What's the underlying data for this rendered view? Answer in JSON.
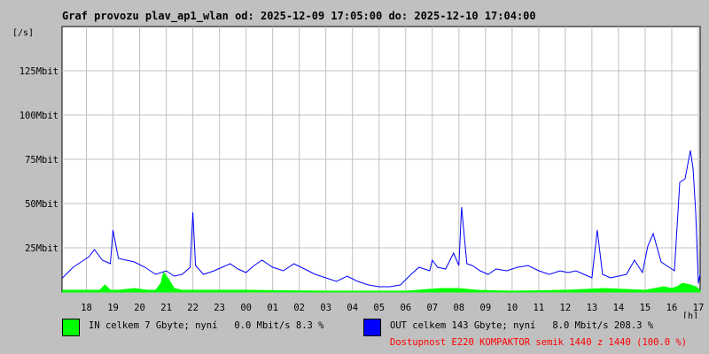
{
  "chart_data": {
    "type": "line",
    "title": "Graf provozu plav_ap1_wlan od: 2025-12-09 17:05:00 do: 2025-12-10 17:04:00",
    "ylabel": "[/s]",
    "xlabel": "[h]",
    "ylim": [
      0,
      150
    ],
    "y_ticks": [
      {
        "value": 25,
        "label": "25Mbit"
      },
      {
        "value": 50,
        "label": "50Mbit"
      },
      {
        "value": 75,
        "label": "75Mbit"
      },
      {
        "value": 100,
        "label": "100Mbit"
      },
      {
        "value": 125,
        "label": "125Mbit"
      }
    ],
    "xlim": [
      17.083,
      41.067
    ],
    "x_ticks": [
      {
        "value": 18,
        "label": "18"
      },
      {
        "value": 19,
        "label": "19"
      },
      {
        "value": 20,
        "label": "20"
      },
      {
        "value": 21,
        "label": "21"
      },
      {
        "value": 22,
        "label": "22"
      },
      {
        "value": 23,
        "label": "23"
      },
      {
        "value": 24,
        "label": "00"
      },
      {
        "value": 25,
        "label": "01"
      },
      {
        "value": 26,
        "label": "02"
      },
      {
        "value": 27,
        "label": "03"
      },
      {
        "value": 28,
        "label": "04"
      },
      {
        "value": 29,
        "label": "05"
      },
      {
        "value": 30,
        "label": "06"
      },
      {
        "value": 31,
        "label": "07"
      },
      {
        "value": 32,
        "label": "08"
      },
      {
        "value": 33,
        "label": "09"
      },
      {
        "value": 34,
        "label": "10"
      },
      {
        "value": 35,
        "label": "11"
      },
      {
        "value": 36,
        "label": "12"
      },
      {
        "value": 37,
        "label": "13"
      },
      {
        "value": 38,
        "label": "14"
      },
      {
        "value": 39,
        "label": "15"
      },
      {
        "value": 40,
        "label": "16"
      },
      {
        "value": 41,
        "label": "17"
      }
    ],
    "grid": true,
    "series": [
      {
        "name": "OUT",
        "color": "#0000ff",
        "style": "line",
        "x": [
          17.1,
          17.5,
          17.9,
          18.1,
          18.3,
          18.6,
          18.9,
          19.0,
          19.2,
          19.5,
          19.8,
          20.2,
          20.6,
          21.0,
          21.3,
          21.6,
          21.9,
          22.0,
          22.1,
          22.4,
          22.8,
          23.1,
          23.4,
          23.7,
          24.0,
          24.3,
          24.6,
          25.0,
          25.4,
          25.8,
          26.2,
          26.6,
          27.0,
          27.4,
          27.8,
          28.2,
          28.6,
          29.0,
          29.4,
          29.8,
          30.2,
          30.5,
          30.9,
          31.0,
          31.2,
          31.5,
          31.8,
          32.0,
          32.1,
          32.3,
          32.5,
          32.8,
          33.1,
          33.4,
          33.8,
          34.2,
          34.6,
          35.0,
          35.4,
          35.8,
          36.1,
          36.4,
          36.7,
          37.0,
          37.2,
          37.4,
          37.7,
          38.0,
          38.3,
          38.6,
          38.9,
          39.1,
          39.3,
          39.6,
          39.9,
          40.1,
          40.3,
          40.5,
          40.7,
          40.8,
          40.9,
          41.0,
          41.067
        ],
        "y": [
          8,
          14,
          18,
          20,
          24,
          18,
          16,
          35,
          19,
          18,
          17,
          14,
          10,
          12,
          9,
          10,
          14,
          45,
          15,
          10,
          12,
          14,
          16,
          13,
          11,
          15,
          18,
          14,
          12,
          16,
          13,
          10,
          8,
          6,
          9,
          6,
          4,
          3,
          3,
          4,
          10,
          14,
          12,
          18,
          14,
          13,
          22,
          15,
          48,
          16,
          15,
          12,
          10,
          13,
          12,
          14,
          15,
          12,
          10,
          12,
          11,
          12,
          10,
          8,
          35,
          10,
          8,
          9,
          10,
          18,
          11,
          26,
          33,
          17,
          14,
          12,
          62,
          64,
          80,
          70,
          45,
          5,
          10
        ]
      },
      {
        "name": "IN",
        "color": "#00ff00",
        "style": "area",
        "x": [
          17.1,
          17.8,
          18.5,
          18.7,
          18.9,
          19.2,
          19.8,
          20.3,
          20.6,
          20.8,
          20.9,
          21.1,
          21.3,
          21.6,
          22.0,
          24.0,
          27.0,
          30.0,
          31.3,
          32.0,
          32.7,
          34.0,
          36.0,
          37.5,
          39.0,
          39.7,
          40.0,
          40.2,
          40.4,
          40.7,
          40.9,
          41.067
        ],
        "y": [
          1,
          1,
          1,
          4,
          1,
          1,
          2,
          1,
          1,
          5,
          11,
          7,
          2,
          1,
          1,
          1,
          0.5,
          0.5,
          2,
          2,
          1,
          0.5,
          1,
          2,
          1,
          3,
          2,
          3,
          5,
          4,
          3,
          1
        ]
      }
    ]
  },
  "legend": {
    "in_text": "IN celkem 7 Gbyte; nyní   0.0 Mbit/s 8.3 %",
    "out_text": "OUT celkem 143 Gbyte; nyní   8.0 Mbit/s 208.3 %",
    "availability": "Dostupnost E220 KOMPAKTOR semik 1440 z 1440 (100.0 %)"
  }
}
